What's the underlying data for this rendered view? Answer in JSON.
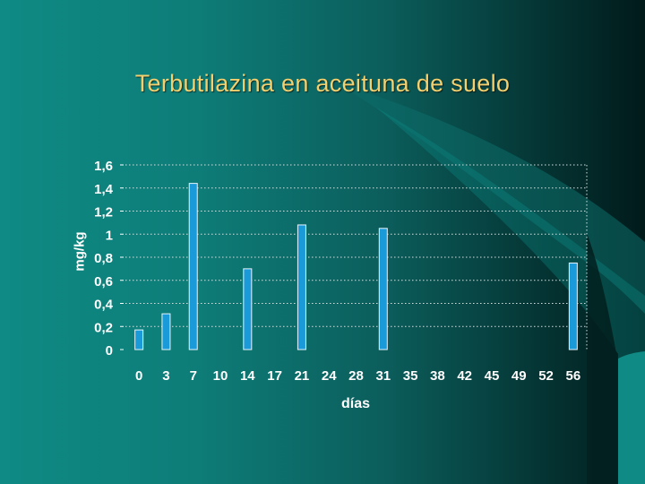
{
  "slide": {
    "title": "Terbutilazina en aceituna de suelo"
  },
  "colors": {
    "title": "#f3cf6e",
    "bar_fill": "#1a9ad8",
    "bar_border": "#e6f4fb",
    "text": "#ffffff",
    "gridline": "#cfe3e3"
  },
  "chart_data": {
    "type": "bar",
    "title": "",
    "xlabel": "días",
    "ylabel": "mg/kg",
    "categories": [
      "0",
      "3",
      "7",
      "10",
      "14",
      "17",
      "21",
      "24",
      "28",
      "31",
      "35",
      "38",
      "42",
      "45",
      "49",
      "52",
      "56"
    ],
    "values": [
      0.17,
      0.31,
      1.44,
      null,
      0.7,
      null,
      1.08,
      null,
      null,
      1.05,
      null,
      null,
      null,
      null,
      null,
      null,
      0.75
    ],
    "ylim": [
      0,
      1.6
    ],
    "yticks": [
      "0",
      "0,2",
      "0,4",
      "0,6",
      "0,8",
      "1",
      "1,2",
      "1,4",
      "1,6"
    ],
    "grid": true
  }
}
